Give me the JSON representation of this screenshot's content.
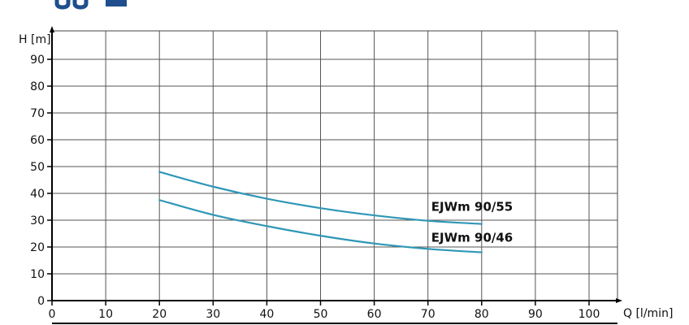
{
  "chart_data": {
    "type": "line",
    "title": "",
    "xlabel": "Q [l/min]",
    "ylabel": "H [m]",
    "xlim": [
      0,
      105
    ],
    "ylim": [
      0,
      100
    ],
    "x_ticks": [
      0,
      10,
      20,
      30,
      40,
      50,
      60,
      70,
      80,
      90,
      100
    ],
    "y_ticks": [
      0,
      10,
      20,
      30,
      40,
      50,
      60,
      70,
      80,
      90
    ],
    "grid": true,
    "legend": "none",
    "line_color": "#2f97b6",
    "series": [
      {
        "name": "EJWm 90/55",
        "x": [
          20,
          30,
          40,
          50,
          60,
          70,
          80
        ],
        "y": [
          48,
          42.5,
          38,
          34.5,
          31.8,
          29.8,
          28.6
        ]
      },
      {
        "name": "EJWm 90/46",
        "x": [
          20,
          30,
          40,
          50,
          60,
          70,
          80
        ],
        "y": [
          37.5,
          32,
          27.8,
          24.2,
          21.3,
          19.3,
          18
        ]
      }
    ]
  }
}
